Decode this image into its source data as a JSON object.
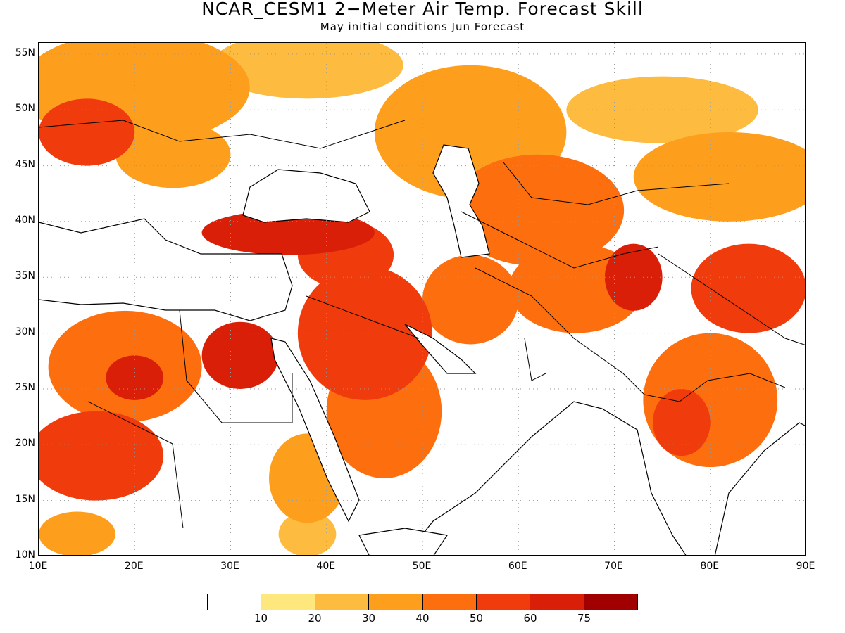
{
  "title": "NCAR_CESM1 2−Meter Air Temp. Forecast Skill",
  "subtitle": "May initial conditions  Jun Forecast",
  "map": {
    "lon_range": [
      10,
      90
    ],
    "lat_range": [
      10,
      56
    ],
    "lat_labels": [
      "55N",
      "50N",
      "45N",
      "40N",
      "35N",
      "30N",
      "25N",
      "20N",
      "15N",
      "10N"
    ],
    "lat_values": [
      55,
      50,
      45,
      40,
      35,
      30,
      25,
      20,
      15,
      10
    ],
    "lon_labels": [
      "10E",
      "20E",
      "30E",
      "40E",
      "50E",
      "60E",
      "70E",
      "80E",
      "90E"
    ],
    "lon_values": [
      10,
      20,
      30,
      40,
      50,
      60,
      70,
      80,
      90
    ],
    "gridlines": "dotted",
    "skill_blobs": [
      {
        "lon": 20,
        "lat": 52,
        "rx": 12,
        "ry": 5,
        "level": 3
      },
      {
        "lon": 38,
        "lat": 54,
        "rx": 10,
        "ry": 3,
        "level": 2
      },
      {
        "lon": 15,
        "lat": 48,
        "rx": 5,
        "ry": 3,
        "level": 5
      },
      {
        "lon": 24,
        "lat": 46,
        "rx": 6,
        "ry": 3,
        "level": 3
      },
      {
        "lon": 55,
        "lat": 48,
        "rx": 10,
        "ry": 6,
        "level": 3
      },
      {
        "lon": 75,
        "lat": 50,
        "rx": 10,
        "ry": 3,
        "level": 2
      },
      {
        "lon": 82,
        "lat": 44,
        "rx": 10,
        "ry": 4,
        "level": 3
      },
      {
        "lon": 62,
        "lat": 41,
        "rx": 9,
        "ry": 5,
        "level": 4
      },
      {
        "lon": 36,
        "lat": 39,
        "rx": 9,
        "ry": 2,
        "level": 6
      },
      {
        "lon": 42,
        "lat": 37,
        "rx": 5,
        "ry": 3,
        "level": 5
      },
      {
        "lon": 44,
        "lat": 30,
        "rx": 7,
        "ry": 6,
        "level": 5
      },
      {
        "lon": 46,
        "lat": 23,
        "rx": 6,
        "ry": 6,
        "level": 4
      },
      {
        "lon": 55,
        "lat": 33,
        "rx": 5,
        "ry": 4,
        "level": 4
      },
      {
        "lon": 66,
        "lat": 34,
        "rx": 7,
        "ry": 4,
        "level": 4
      },
      {
        "lon": 72,
        "lat": 35,
        "rx": 3,
        "ry": 3,
        "level": 6
      },
      {
        "lon": 84,
        "lat": 34,
        "rx": 6,
        "ry": 4,
        "level": 5
      },
      {
        "lon": 80,
        "lat": 24,
        "rx": 7,
        "ry": 6,
        "level": 4
      },
      {
        "lon": 77,
        "lat": 22,
        "rx": 3,
        "ry": 3,
        "level": 5
      },
      {
        "lon": 19,
        "lat": 27,
        "rx": 8,
        "ry": 5,
        "level": 4
      },
      {
        "lon": 31,
        "lat": 28,
        "rx": 4,
        "ry": 3,
        "level": 6
      },
      {
        "lon": 20,
        "lat": 26,
        "rx": 3,
        "ry": 2,
        "level": 6
      },
      {
        "lon": 16,
        "lat": 19,
        "rx": 7,
        "ry": 4,
        "level": 5
      },
      {
        "lon": 38,
        "lat": 17,
        "rx": 4,
        "ry": 4,
        "level": 3
      },
      {
        "lon": 38,
        "lat": 12,
        "rx": 3,
        "ry": 2,
        "level": 2
      },
      {
        "lon": 14,
        "lat": 12,
        "rx": 4,
        "ry": 2,
        "level": 3
      }
    ]
  },
  "colorbar": {
    "colors": [
      "#ffffff",
      "#fee77c",
      "#fdbb3f",
      "#fd9f1d",
      "#fd6f0e",
      "#f03c0d",
      "#d91f07",
      "#a10000"
    ],
    "tick_labels": [
      "10",
      "20",
      "30",
      "40",
      "50",
      "60",
      "75"
    ]
  }
}
